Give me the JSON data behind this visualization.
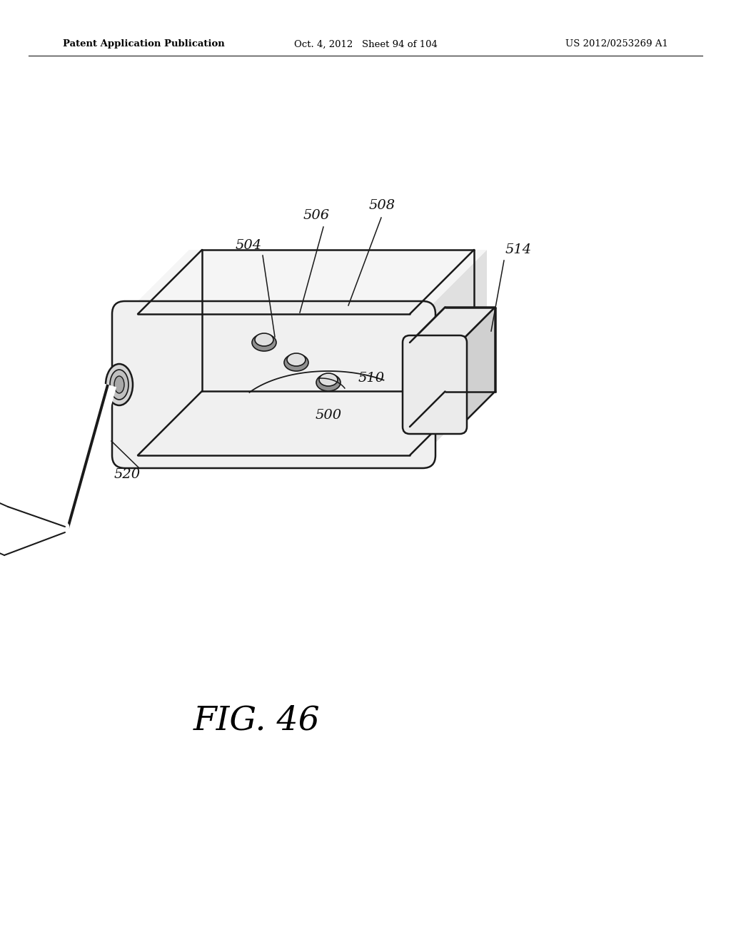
{
  "bg_color": "#ffffff",
  "line_color": "#1a1a1a",
  "header_left": "Patent Application Publication",
  "header_center": "Oct. 4, 2012   Sheet 94 of 104",
  "header_right": "US 2012/0253269 A1",
  "fig_label": "FIG. 46",
  "top_face_fill": "#f5f5f5",
  "front_face_fill": "#f0f0f0",
  "right_face_fill": "#e0e0e0",
  "bottom_face_fill": "#d8d8d8",
  "connector_fill": "#ebebeb",
  "connector_side_fill": "#d0d0d0",
  "btn_outer_fill": "#c0c0c0",
  "btn_inner_fill": "#e8e8e8"
}
